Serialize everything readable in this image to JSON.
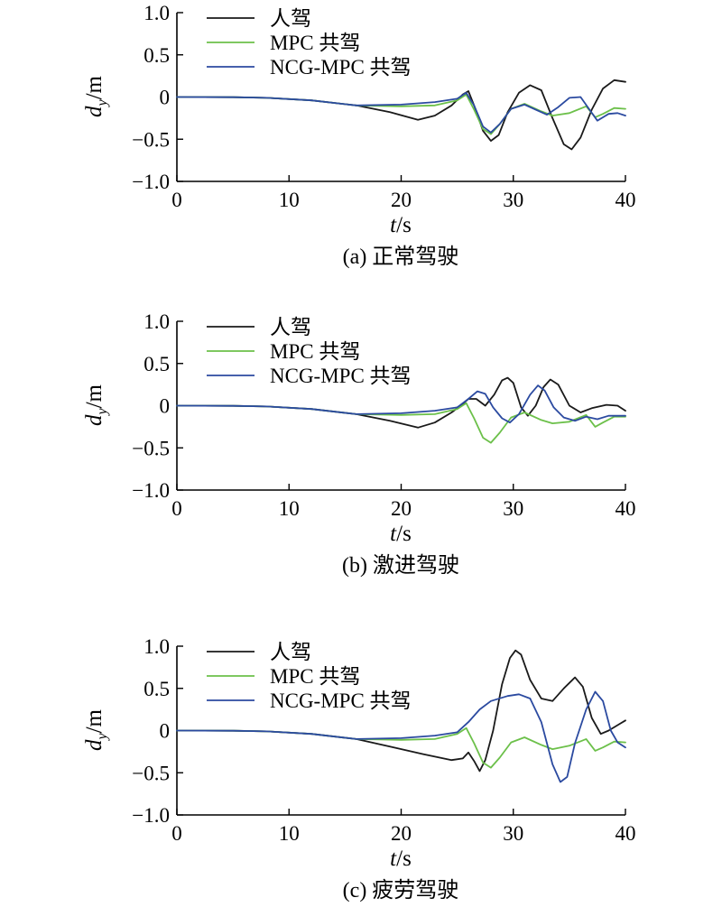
{
  "colors": {
    "human": "#1a1a1a",
    "mpc": "#6cc04a",
    "ncg": "#2b4aa0",
    "axis": "#000000"
  },
  "chart_data": [
    {
      "type": "line",
      "caption": "(a) 正常驾驶",
      "xlabel_var": "t",
      "xlabel_unit": "/s",
      "ylabel_var": "d",
      "ylabel_sub": "y",
      "ylabel_unit": "/m",
      "xlim": [
        0,
        40
      ],
      "ylim": [
        -1.0,
        1.0
      ],
      "xticks": [
        "0",
        "10",
        "20",
        "30",
        "40"
      ],
      "yticks": [
        "1.0",
        "0.5",
        "0",
        "−0.5",
        "−1.0"
      ],
      "legend_position": "top-center",
      "series": [
        {
          "name": "人驾",
          "color_key": "human",
          "points": [
            [
              0,
              0
            ],
            [
              5,
              -0.002
            ],
            [
              8,
              -0.01
            ],
            [
              12,
              -0.04
            ],
            [
              16,
              -0.1
            ],
            [
              19,
              -0.18
            ],
            [
              21.5,
              -0.27
            ],
            [
              23,
              -0.22
            ],
            [
              24.5,
              -0.1
            ],
            [
              25.5,
              0.03
            ],
            [
              26,
              0.07
            ],
            [
              26.5,
              -0.1
            ],
            [
              27.3,
              -0.4
            ],
            [
              28,
              -0.52
            ],
            [
              28.7,
              -0.45
            ],
            [
              29.5,
              -0.18
            ],
            [
              30.5,
              0.05
            ],
            [
              31.5,
              0.14
            ],
            [
              32.5,
              0.08
            ],
            [
              33.5,
              -0.25
            ],
            [
              34.5,
              -0.56
            ],
            [
              35.2,
              -0.62
            ],
            [
              36,
              -0.48
            ],
            [
              37,
              -0.15
            ],
            [
              38,
              0.1
            ],
            [
              39,
              0.2
            ],
            [
              40,
              0.18
            ]
          ]
        },
        {
          "name": "MPC 共驾",
          "color_key": "mpc",
          "points": [
            [
              0,
              0
            ],
            [
              5,
              -0.002
            ],
            [
              8,
              -0.01
            ],
            [
              12,
              -0.04
            ],
            [
              16,
              -0.1
            ],
            [
              20,
              -0.11
            ],
            [
              23,
              -0.1
            ],
            [
              25,
              -0.04
            ],
            [
              25.8,
              0.03
            ],
            [
              26.5,
              -0.15
            ],
            [
              27.3,
              -0.38
            ],
            [
              28,
              -0.44
            ],
            [
              28.8,
              -0.32
            ],
            [
              29.8,
              -0.14
            ],
            [
              31,
              -0.08
            ],
            [
              32.5,
              -0.17
            ],
            [
              33.5,
              -0.22
            ],
            [
              35,
              -0.19
            ],
            [
              36.5,
              -0.11
            ],
            [
              37.3,
              -0.24
            ],
            [
              38,
              -0.2
            ],
            [
              39,
              -0.13
            ],
            [
              40,
              -0.14
            ]
          ]
        },
        {
          "name": "NCG-MPC 共驾",
          "color_key": "ncg",
          "points": [
            [
              0,
              0
            ],
            [
              5,
              -0.002
            ],
            [
              8,
              -0.01
            ],
            [
              12,
              -0.04
            ],
            [
              16,
              -0.1
            ],
            [
              20,
              -0.09
            ],
            [
              23,
              -0.06
            ],
            [
              25,
              -0.02
            ],
            [
              25.8,
              0.05
            ],
            [
              26.5,
              -0.1
            ],
            [
              27.3,
              -0.35
            ],
            [
              28,
              -0.42
            ],
            [
              28.8,
              -0.32
            ],
            [
              29.8,
              -0.14
            ],
            [
              31,
              -0.09
            ],
            [
              32,
              -0.15
            ],
            [
              33,
              -0.21
            ],
            [
              34,
              -0.12
            ],
            [
              35,
              -0.01
            ],
            [
              36,
              0.0
            ],
            [
              36.8,
              -0.15
            ],
            [
              37.5,
              -0.28
            ],
            [
              38.5,
              -0.2
            ],
            [
              39.3,
              -0.19
            ],
            [
              40,
              -0.22
            ]
          ]
        }
      ]
    },
    {
      "type": "line",
      "caption": "(b) 激进驾驶",
      "xlabel_var": "t",
      "xlabel_unit": "/s",
      "ylabel_var": "d",
      "ylabel_sub": "y",
      "ylabel_unit": "/m",
      "xlim": [
        0,
        40
      ],
      "ylim": [
        -1.0,
        1.0
      ],
      "xticks": [
        "0",
        "10",
        "20",
        "30",
        "40"
      ],
      "yticks": [
        "1.0",
        "0.5",
        "0",
        "−0.5",
        "−1.0"
      ],
      "legend_position": "top-center",
      "series": [
        {
          "name": "人驾",
          "color_key": "human",
          "points": [
            [
              0,
              0
            ],
            [
              5,
              -0.002
            ],
            [
              8,
              -0.01
            ],
            [
              12,
              -0.04
            ],
            [
              16,
              -0.1
            ],
            [
              19,
              -0.18
            ],
            [
              21.5,
              -0.26
            ],
            [
              23,
              -0.2
            ],
            [
              24.5,
              -0.08
            ],
            [
              25.5,
              0.02
            ],
            [
              26,
              0.08
            ],
            [
              26.7,
              0.08
            ],
            [
              27.5,
              0.0
            ],
            [
              28.3,
              0.13
            ],
            [
              29,
              0.3
            ],
            [
              29.5,
              0.33
            ],
            [
              30,
              0.27
            ],
            [
              30.7,
              -0.02
            ],
            [
              31.3,
              -0.12
            ],
            [
              32,
              0.0
            ],
            [
              32.7,
              0.22
            ],
            [
              33.3,
              0.31
            ],
            [
              34,
              0.25
            ],
            [
              35,
              0.0
            ],
            [
              36,
              -0.08
            ],
            [
              37,
              -0.03
            ],
            [
              38.3,
              0.01
            ],
            [
              39.3,
              0.0
            ],
            [
              40,
              -0.06
            ]
          ]
        },
        {
          "name": "MPC 共驾",
          "color_key": "mpc",
          "points": [
            [
              0,
              0
            ],
            [
              5,
              -0.002
            ],
            [
              8,
              -0.01
            ],
            [
              12,
              -0.04
            ],
            [
              16,
              -0.1
            ],
            [
              20,
              -0.11
            ],
            [
              23,
              -0.1
            ],
            [
              25,
              -0.04
            ],
            [
              25.8,
              0.03
            ],
            [
              26.5,
              -0.15
            ],
            [
              27.3,
              -0.38
            ],
            [
              28,
              -0.44
            ],
            [
              28.8,
              -0.32
            ],
            [
              29.8,
              -0.14
            ],
            [
              31,
              -0.08
            ],
            [
              32.5,
              -0.17
            ],
            [
              33.5,
              -0.21
            ],
            [
              35,
              -0.19
            ],
            [
              36.5,
              -0.11
            ],
            [
              37.3,
              -0.25
            ],
            [
              38,
              -0.2
            ],
            [
              39,
              -0.13
            ],
            [
              40,
              -0.13
            ]
          ]
        },
        {
          "name": "NCG-MPC 共驾",
          "color_key": "ncg",
          "points": [
            [
              0,
              0
            ],
            [
              5,
              -0.002
            ],
            [
              8,
              -0.01
            ],
            [
              12,
              -0.04
            ],
            [
              16,
              -0.1
            ],
            [
              20,
              -0.09
            ],
            [
              23,
              -0.06
            ],
            [
              25,
              -0.02
            ],
            [
              26,
              0.08
            ],
            [
              26.8,
              0.17
            ],
            [
              27.5,
              0.14
            ],
            [
              28.2,
              -0.02
            ],
            [
              29,
              -0.15
            ],
            [
              29.7,
              -0.2
            ],
            [
              30.5,
              -0.1
            ],
            [
              31.5,
              0.13
            ],
            [
              32.2,
              0.24
            ],
            [
              32.8,
              0.18
            ],
            [
              33.6,
              -0.02
            ],
            [
              34.5,
              -0.14
            ],
            [
              35.5,
              -0.18
            ],
            [
              36.5,
              -0.13
            ],
            [
              37.5,
              -0.16
            ],
            [
              38.5,
              -0.12
            ],
            [
              40,
              -0.12
            ]
          ]
        }
      ]
    },
    {
      "type": "line",
      "caption": "(c) 疲劳驾驶",
      "xlabel_var": "t",
      "xlabel_unit": "/s",
      "ylabel_var": "d",
      "ylabel_sub": "y",
      "ylabel_unit": "/m",
      "xlim": [
        0,
        40
      ],
      "ylim": [
        -1.0,
        1.0
      ],
      "xticks": [
        "0",
        "10",
        "20",
        "30",
        "40"
      ],
      "yticks": [
        "1.0",
        "0.5",
        "0",
        "−0.5",
        "−1.0"
      ],
      "legend_position": "top-center",
      "series": [
        {
          "name": "人驾",
          "color_key": "human",
          "points": [
            [
              0,
              0
            ],
            [
              5,
              -0.002
            ],
            [
              8,
              -0.01
            ],
            [
              12,
              -0.04
            ],
            [
              16,
              -0.1
            ],
            [
              19,
              -0.19
            ],
            [
              22,
              -0.28
            ],
            [
              24.5,
              -0.35
            ],
            [
              25.5,
              -0.33
            ],
            [
              26,
              -0.26
            ],
            [
              26.5,
              -0.36
            ],
            [
              27,
              -0.48
            ],
            [
              27.5,
              -0.35
            ],
            [
              28.2,
              0.0
            ],
            [
              29,
              0.55
            ],
            [
              29.7,
              0.86
            ],
            [
              30.2,
              0.95
            ],
            [
              30.7,
              0.9
            ],
            [
              31.5,
              0.6
            ],
            [
              32.5,
              0.38
            ],
            [
              33.5,
              0.35
            ],
            [
              34.5,
              0.5
            ],
            [
              35.5,
              0.63
            ],
            [
              36.2,
              0.52
            ],
            [
              37,
              0.15
            ],
            [
              37.8,
              -0.04
            ],
            [
              38.5,
              0.0
            ],
            [
              39.5,
              0.08
            ],
            [
              40,
              0.12
            ]
          ]
        },
        {
          "name": "MPC 共驾",
          "color_key": "mpc",
          "points": [
            [
              0,
              0
            ],
            [
              5,
              -0.002
            ],
            [
              8,
              -0.01
            ],
            [
              12,
              -0.04
            ],
            [
              16,
              -0.1
            ],
            [
              20,
              -0.11
            ],
            [
              23,
              -0.1
            ],
            [
              25,
              -0.04
            ],
            [
              25.8,
              0.03
            ],
            [
              26.5,
              -0.15
            ],
            [
              27.3,
              -0.38
            ],
            [
              28,
              -0.44
            ],
            [
              28.8,
              -0.32
            ],
            [
              29.8,
              -0.14
            ],
            [
              31,
              -0.08
            ],
            [
              32.5,
              -0.17
            ],
            [
              33.5,
              -0.22
            ],
            [
              35,
              -0.18
            ],
            [
              36.5,
              -0.1
            ],
            [
              37.3,
              -0.24
            ],
            [
              38,
              -0.2
            ],
            [
              39,
              -0.13
            ],
            [
              40,
              -0.14
            ]
          ]
        },
        {
          "name": "NCG-MPC 共驾",
          "color_key": "ncg",
          "points": [
            [
              0,
              0
            ],
            [
              5,
              -0.002
            ],
            [
              8,
              -0.01
            ],
            [
              12,
              -0.04
            ],
            [
              16,
              -0.1
            ],
            [
              20,
              -0.09
            ],
            [
              23,
              -0.06
            ],
            [
              25,
              -0.02
            ],
            [
              26,
              0.1
            ],
            [
              27,
              0.25
            ],
            [
              28,
              0.35
            ],
            [
              29.5,
              0.41
            ],
            [
              30.5,
              0.43
            ],
            [
              31.5,
              0.38
            ],
            [
              32.5,
              0.1
            ],
            [
              33.5,
              -0.4
            ],
            [
              34.2,
              -0.61
            ],
            [
              34.8,
              -0.55
            ],
            [
              35.5,
              -0.15
            ],
            [
              36.5,
              0.25
            ],
            [
              37.3,
              0.46
            ],
            [
              38,
              0.35
            ],
            [
              38.7,
              0.0
            ],
            [
              39.3,
              -0.14
            ],
            [
              40,
              -0.2
            ]
          ]
        }
      ]
    }
  ]
}
